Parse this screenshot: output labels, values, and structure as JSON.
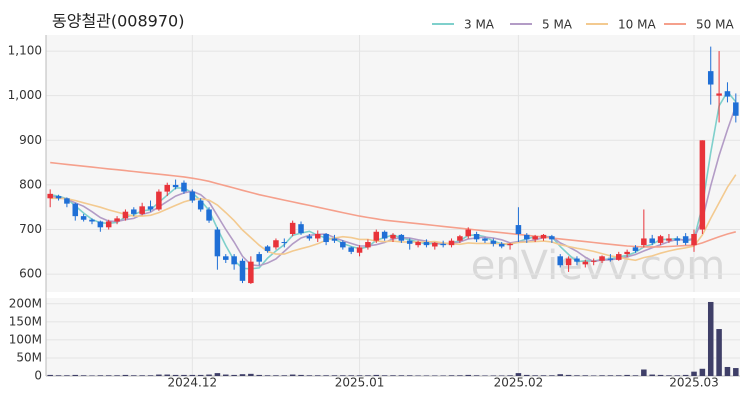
{
  "chart_data": {
    "type": "candlestick",
    "title": "동양철관(008970)",
    "watermark": "enVievv.com",
    "categories": [
      null,
      null,
      null,
      null,
      null,
      null,
      null,
      null,
      null,
      null,
      null,
      null,
      null,
      null,
      null,
      null,
      null,
      "2024.12",
      null,
      null,
      null,
      null,
      null,
      null,
      null,
      null,
      null,
      null,
      null,
      null,
      null,
      null,
      null,
      null,
      null,
      null,
      null,
      "2025.01",
      null,
      null,
      null,
      null,
      null,
      null,
      null,
      null,
      null,
      null,
      null,
      null,
      null,
      null,
      null,
      null,
      null,
      null,
      "2025.02",
      null,
      null,
      null,
      null,
      null,
      null,
      null,
      null,
      null,
      null,
      null,
      null,
      null,
      null,
      null,
      null,
      null,
      null,
      null,
      null,
      "2025.03",
      null,
      null,
      null,
      null,
      null
    ],
    "open": [
      770,
      775,
      770,
      758,
      730,
      722,
      718,
      705,
      718,
      725,
      745,
      735,
      752,
      745,
      785,
      800,
      805,
      785,
      765,
      745,
      700,
      640,
      640,
      630,
      580,
      645,
      662,
      660,
      672,
      690,
      712,
      685,
      680,
      690,
      680,
      672,
      660,
      648,
      660,
      675,
      695,
      680,
      688,
      675,
      665,
      672,
      662,
      668,
      665,
      675,
      685,
      690,
      680,
      675,
      668,
      665,
      710,
      688,
      678,
      680,
      685,
      640,
      620,
      635,
      622,
      628,
      630,
      635,
      632,
      645,
      660,
      665,
      680,
      670,
      675,
      680,
      685,
      665,
      700,
      1055,
      1000,
      1010,
      985
    ],
    "high": [
      790,
      778,
      772,
      760,
      735,
      725,
      720,
      722,
      730,
      745,
      750,
      760,
      765,
      790,
      805,
      812,
      810,
      790,
      770,
      750,
      705,
      645,
      645,
      635,
      640,
      650,
      665,
      680,
      680,
      720,
      718,
      690,
      698,
      692,
      688,
      676,
      662,
      665,
      678,
      700,
      698,
      692,
      690,
      680,
      675,
      678,
      672,
      675,
      680,
      688,
      705,
      695,
      682,
      680,
      672,
      670,
      750,
      692,
      688,
      690,
      688,
      645,
      640,
      640,
      632,
      635,
      642,
      645,
      650,
      655,
      665,
      745,
      688,
      688,
      690,
      685,
      692,
      700,
      900,
      1110,
      1100,
      1030,
      1005
    ],
    "low": [
      750,
      765,
      750,
      720,
      718,
      712,
      695,
      700,
      712,
      720,
      730,
      732,
      740,
      742,
      775,
      790,
      780,
      760,
      740,
      715,
      610,
      625,
      610,
      580,
      578,
      620,
      648,
      655,
      660,
      685,
      688,
      675,
      672,
      665,
      670,
      655,
      645,
      640,
      655,
      670,
      675,
      672,
      670,
      655,
      660,
      660,
      655,
      660,
      660,
      670,
      680,
      672,
      670,
      662,
      658,
      655,
      672,
      670,
      672,
      675,
      670,
      615,
      605,
      620,
      615,
      620,
      625,
      628,
      630,
      638,
      648,
      660,
      665,
      665,
      670,
      665,
      665,
      650,
      690,
      980,
      940,
      985,
      940
    ],
    "close": [
      780,
      770,
      758,
      730,
      722,
      718,
      705,
      718,
      725,
      740,
      735,
      752,
      745,
      785,
      800,
      795,
      785,
      765,
      745,
      720,
      640,
      632,
      622,
      585,
      628,
      628,
      652,
      676,
      670,
      715,
      692,
      680,
      690,
      672,
      675,
      660,
      650,
      660,
      672,
      695,
      680,
      688,
      675,
      668,
      672,
      665,
      670,
      665,
      675,
      685,
      700,
      678,
      675,
      668,
      662,
      668,
      690,
      678,
      685,
      688,
      678,
      620,
      635,
      628,
      628,
      630,
      640,
      632,
      645,
      650,
      652,
      680,
      670,
      685,
      680,
      675,
      670,
      690,
      900,
      1025,
      1005,
      998,
      955
    ],
    "volume": [
      3000000,
      2000000,
      2000000,
      3000000,
      2000000,
      1500000,
      2000000,
      2000000,
      2000000,
      3000000,
      2000000,
      2000000,
      2000000,
      4000000,
      4000000,
      3000000,
      3000000,
      3000000,
      3000000,
      4000000,
      8000000,
      4000000,
      3000000,
      5000000,
      6000000,
      3000000,
      2000000,
      2000000,
      2000000,
      4000000,
      3000000,
      2000000,
      2000000,
      2000000,
      2000000,
      2000000,
      2000000,
      2000000,
      2000000,
      3000000,
      2000000,
      2000000,
      2000000,
      2000000,
      1500000,
      1500000,
      1500000,
      1500000,
      2000000,
      2000000,
      3000000,
      2000000,
      1500000,
      1500000,
      1500000,
      2000000,
      8000000,
      3000000,
      2000000,
      2000000,
      2000000,
      5000000,
      3000000,
      2000000,
      2000000,
      1500000,
      2000000,
      2000000,
      2000000,
      3000000,
      2000000,
      18000000,
      4000000,
      3000000,
      2000000,
      2000000,
      3000000,
      12000000,
      20000000,
      205000000,
      130000000,
      25000000,
      22000000
    ],
    "up_color": "#e8333a",
    "down_color": "#1f6fd6",
    "volume_color": "#3f3f68",
    "series": [
      {
        "name": "3 MA",
        "color": "#7fd0cc",
        "values": [
          778,
          775,
          769,
          753,
          737,
          723,
          715,
          714,
          716,
          728,
          733,
          742,
          744,
          761,
          777,
          793,
          793,
          782,
          765,
          743,
          702,
          664,
          631,
          613,
          612,
          614,
          636,
          652,
          666,
          687,
          692,
          696,
          687,
          681,
          679,
          669,
          662,
          657,
          661,
          676,
          682,
          688,
          681,
          677,
          672,
          668,
          669,
          667,
          670,
          675,
          687,
          688,
          684,
          674,
          668,
          666,
          673,
          679,
          684,
          684,
          684,
          662,
          644,
          628,
          630,
          629,
          633,
          634,
          639,
          642,
          649,
          661,
          667,
          678,
          678,
          680,
          675,
          678,
          753,
          872,
          977,
          1009,
          986
        ]
      },
      {
        "name": "5 MA",
        "color": "#b39cc6",
        "values": [
          775,
          772,
          768,
          760,
          752,
          740,
          727,
          719,
          718,
          722,
          725,
          734,
          739,
          751,
          763,
          775,
          782,
          786,
          778,
          762,
          731,
          700,
          672,
          640,
          621,
          619,
          625,
          634,
          651,
          668,
          681,
          687,
          689,
          690,
          682,
          675,
          669,
          663,
          663,
          666,
          671,
          679,
          682,
          681,
          677,
          674,
          670,
          668,
          669,
          672,
          679,
          681,
          683,
          681,
          677,
          670,
          673,
          673,
          677,
          682,
          684,
          670,
          661,
          651,
          638,
          628,
          632,
          632,
          635,
          639,
          644,
          652,
          659,
          666,
          673,
          678,
          676,
          680,
          722,
          798,
          866,
          924,
          977
        ]
      },
      {
        "name": "10 MA",
        "color": "#f3ca90",
        "values": [
          770,
          770,
          769,
          765,
          760,
          755,
          750,
          744,
          739,
          734,
          730,
          730,
          732,
          738,
          746,
          754,
          762,
          767,
          769,
          766,
          755,
          738,
          720,
          699,
          682,
          665,
          651,
          645,
          645,
          652,
          657,
          662,
          668,
          676,
          681,
          684,
          682,
          678,
          678,
          674,
          673,
          674,
          672,
          672,
          672,
          672,
          673,
          670,
          668,
          667,
          670,
          669,
          669,
          669,
          668,
          668,
          671,
          672,
          673,
          674,
          672,
          666,
          662,
          658,
          655,
          651,
          646,
          641,
          638,
          634,
          631,
          637,
          641,
          647,
          652,
          656,
          659,
          663,
          688,
          725,
          760,
          795,
          823
        ]
      },
      {
        "name": "50 MA",
        "color": "#f5a08c",
        "values": [
          850,
          848,
          846,
          844,
          842,
          840,
          838,
          836,
          834,
          832,
          830,
          828,
          826,
          824,
          822,
          820,
          818,
          815,
          812,
          808,
          803,
          798,
          793,
          788,
          783,
          778,
          774,
          770,
          766,
          762,
          758,
          754,
          750,
          746,
          742,
          738,
          734,
          730,
          727,
          724,
          721,
          719,
          717,
          715,
          713,
          711,
          709,
          707,
          705,
          703,
          701,
          699,
          697,
          695,
          693,
          691,
          689,
          687,
          685,
          683,
          681,
          679,
          677,
          675,
          673,
          671,
          669,
          667,
          665,
          663,
          662,
          661,
          661,
          661,
          662,
          663,
          664,
          665,
          670,
          677,
          684,
          690,
          695
        ]
      }
    ],
    "ylim": [
      560,
      1136
    ],
    "yticks": [
      600,
      700,
      800,
      900,
      {
        "value": 1000,
        "label": "1,000"
      },
      {
        "value": 1100,
        "label": "1,100"
      }
    ],
    "y2lim": [
      0,
      216000000
    ],
    "y2ticks": [
      0,
      {
        "value": 50000000,
        "label": "50M"
      },
      {
        "value": 100000000,
        "label": "100M"
      },
      {
        "value": 150000000,
        "label": "150M"
      },
      {
        "value": 200000000,
        "label": "200M"
      }
    ],
    "grid": true,
    "legend": "top-right"
  }
}
